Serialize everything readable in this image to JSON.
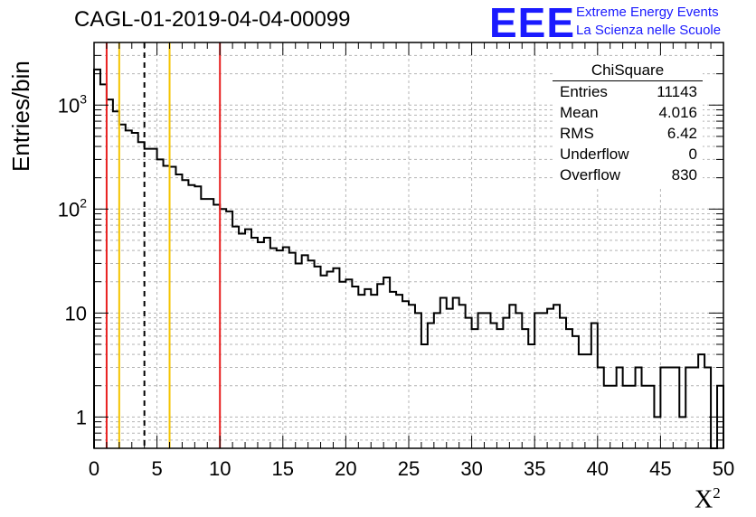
{
  "title": "CAGL-01-2019-04-04-00099",
  "logo": {
    "mark": "EEE",
    "line1": "Extreme Energy Events",
    "line2": "La Scienza nelle Scuole",
    "color": "#1a1aff"
  },
  "axes": {
    "ylabel": "Entries/bin",
    "xlabel_base": "X",
    "xlabel_sup": "2"
  },
  "stats": {
    "title": "ChiSquare",
    "rows": [
      {
        "key": "Entries",
        "value": "11143"
      },
      {
        "key": "Mean",
        "value": "4.016"
      },
      {
        "key": "RMS",
        "value": "6.42"
      },
      {
        "key": "Underflow",
        "value": "0"
      },
      {
        "key": "Overflow",
        "value": "830"
      }
    ]
  },
  "chart_data": {
    "type": "histogram",
    "xlim": [
      0,
      50
    ],
    "ylim": [
      0.5,
      4000
    ],
    "yscale": "log",
    "grid": true,
    "bin_width": 0.5,
    "x_ticks": [
      "0",
      "5",
      "10",
      "15",
      "20",
      "25",
      "30",
      "35",
      "40",
      "45",
      "50"
    ],
    "y_ticks": [
      {
        "value": 1,
        "label": "1"
      },
      {
        "value": 10,
        "label": "10"
      },
      {
        "value": 100,
        "base": "10",
        "exp": "2"
      },
      {
        "value": 1000,
        "base": "10",
        "exp": "3"
      }
    ],
    "values": [
      2200,
      1580,
      1130,
      870,
      650,
      570,
      540,
      440,
      380,
      380,
      300,
      260,
      255,
      215,
      190,
      170,
      165,
      125,
      125,
      110,
      100,
      95,
      68,
      58,
      64,
      53,
      48,
      53,
      42,
      40,
      43,
      38,
      30,
      36,
      32,
      28,
      23,
      25,
      27,
      20,
      21,
      18,
      15,
      17,
      15,
      19,
      22,
      16,
      15,
      13,
      12,
      10,
      5,
      8,
      10,
      14,
      11,
      14,
      12,
      9,
      7,
      10,
      10,
      8,
      7,
      9,
      12,
      10,
      7,
      5,
      10,
      10,
      11,
      12,
      9,
      7,
      6,
      4,
      4,
      8,
      3,
      2,
      2,
      3,
      2,
      2,
      3,
      2,
      2,
      1,
      3,
      3,
      3,
      1,
      3,
      3,
      4,
      3,
      0,
      2
    ],
    "line_color": "#000000",
    "markers": [
      {
        "x": 1,
        "style": "solid",
        "color": "#e8201f"
      },
      {
        "x": 2,
        "style": "solid",
        "color": "#f5c400"
      },
      {
        "x": 4,
        "style": "dashed",
        "color": "#000000"
      },
      {
        "x": 6,
        "style": "solid",
        "color": "#f5c400"
      },
      {
        "x": 10,
        "style": "solid",
        "color": "#e8201f"
      }
    ]
  }
}
